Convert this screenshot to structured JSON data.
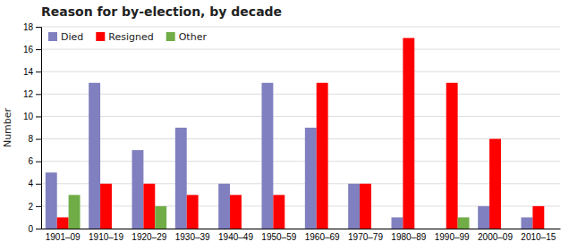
{
  "chart_data": {
    "type": "bar",
    "title": "Reason for by-election, by decade",
    "categories": [
      "1901–09",
      "1910–19",
      "1920–29",
      "1930–39",
      "1940–49",
      "1950–59",
      "1960–69",
      "1970–79",
      "1980–89",
      "1990–99",
      "2000–09",
      "2010–15"
    ],
    "series": [
      {
        "name": "Died",
        "color": "#8080c0",
        "values": [
          5,
          13,
          7,
          9,
          4,
          13,
          9,
          4,
          1,
          0,
          2,
          1
        ]
      },
      {
        "name": "Resigned",
        "color": "#ff0000",
        "values": [
          1,
          4,
          4,
          3,
          3,
          3,
          13,
          4,
          17,
          13,
          8,
          2
        ]
      },
      {
        "name": "Other",
        "color": "#70ad47",
        "values": [
          3,
          0,
          2,
          0,
          0,
          0,
          0,
          0,
          0,
          1,
          0,
          0
        ]
      }
    ],
    "ylabel": "Number",
    "ylim": [
      0,
      18
    ],
    "yticks": [
      0,
      2,
      4,
      6,
      8,
      10,
      12,
      14,
      16,
      18
    ],
    "grid": true,
    "legend": "upper left"
  }
}
